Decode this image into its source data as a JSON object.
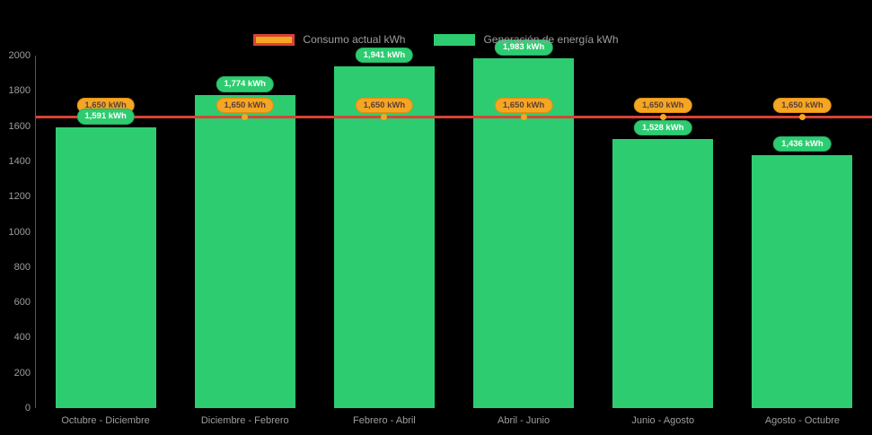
{
  "canvas": {
    "background": "#000000"
  },
  "chart_data": {
    "type": "bar",
    "title": "",
    "categories": [
      "Octubre - Diciembre",
      "Diciembre - Febrero",
      "Febrero - Abril",
      "Abril - Junio",
      "Junio - Agosto",
      "Agosto - Octubre"
    ],
    "series": [
      {
        "name": "Consumo actual kWh",
        "type": "line",
        "color": "#D84335",
        "marker_color": "#F5A623",
        "values": [
          1650,
          1650,
          1650,
          1650,
          1650,
          1650
        ],
        "data_labels": [
          "1,650 kWh",
          "1,650 kWh",
          "1,650 kWh",
          "1,650 kWh",
          "1,650 kWh",
          "1,650 kWh"
        ],
        "label_bg": "#F5A623",
        "label_text_color": "#5D4037"
      },
      {
        "name": "Generación de energía kWh",
        "type": "bar",
        "color": "#2ECC71",
        "values": [
          1591,
          1774,
          1941,
          1983,
          1528,
          1436
        ],
        "data_labels": [
          "1,591 kWh",
          "1,774 kWh",
          "1,941 kWh",
          "1,983 kWh",
          "1,528 kWh",
          "1,436 kWh"
        ],
        "label_bg": "#2ECC71",
        "label_text_color": "#FFFFFF"
      }
    ],
    "ylim": [
      0,
      2000
    ],
    "yticks": [
      "0",
      "200",
      "400",
      "600",
      "800",
      "1000",
      "1200",
      "1400",
      "1600",
      "1800",
      "2000"
    ],
    "grid": false,
    "legend_position": "top",
    "axis_text_color": "#9E9E9E"
  }
}
